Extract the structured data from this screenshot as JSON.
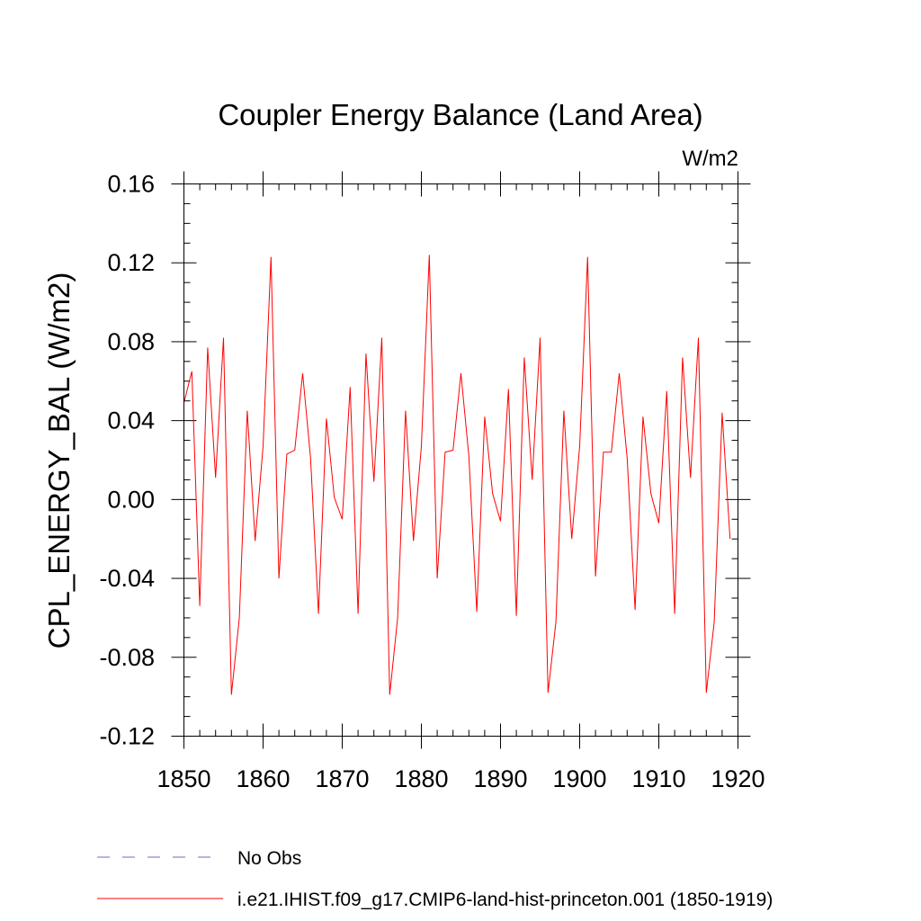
{
  "chart_data": {
    "type": "line",
    "title": "Coupler Energy Balance (Land Area)",
    "units_label": "W/m2",
    "ylabel": "CPL_ENERGY_BAL  (W/m2)",
    "xlabel": "",
    "xlim": [
      1850,
      1920
    ],
    "ylim": [
      -0.12,
      0.16
    ],
    "x_ticks": [
      1850,
      1860,
      1870,
      1880,
      1890,
      1900,
      1910,
      1920
    ],
    "y_ticks": [
      -0.12,
      -0.08,
      -0.04,
      0.0,
      0.04,
      0.08,
      0.12,
      0.16
    ],
    "y_tick_labels": [
      "-0.12",
      "-0.08",
      "-0.04",
      "0.00",
      "0.04",
      "0.08",
      "0.12",
      "0.16"
    ],
    "grid": false,
    "legend_position": "bottom",
    "series": [
      {
        "name": "i.e21.IHIST.f09_g17.CMIP6-land-hist-princeton.001 (1850-1919)",
        "color": "#ff0000",
        "style": "solid",
        "x": [
          1850,
          1851,
          1852,
          1853,
          1854,
          1855,
          1856,
          1857,
          1858,
          1859,
          1860,
          1861,
          1862,
          1863,
          1864,
          1865,
          1866,
          1867,
          1868,
          1869,
          1870,
          1871,
          1872,
          1873,
          1874,
          1875,
          1876,
          1877,
          1878,
          1879,
          1880,
          1881,
          1882,
          1883,
          1884,
          1885,
          1886,
          1887,
          1888,
          1889,
          1890,
          1891,
          1892,
          1893,
          1894,
          1895,
          1896,
          1897,
          1898,
          1899,
          1900,
          1901,
          1902,
          1903,
          1904,
          1905,
          1906,
          1907,
          1908,
          1909,
          1910,
          1911,
          1912,
          1913,
          1914,
          1915,
          1916,
          1917,
          1918,
          1919
        ],
        "values": [
          0.049,
          0.065,
          -0.054,
          0.077,
          0.011,
          0.082,
          -0.099,
          -0.06,
          0.045,
          -0.021,
          0.027,
          0.123,
          -0.04,
          0.023,
          0.025,
          0.064,
          0.021,
          -0.058,
          0.041,
          0.001,
          -0.01,
          0.057,
          -0.058,
          0.074,
          0.009,
          0.082,
          -0.099,
          -0.06,
          0.045,
          -0.021,
          0.027,
          0.124,
          -0.04,
          0.024,
          0.025,
          0.064,
          0.022,
          -0.057,
          0.042,
          0.003,
          -0.011,
          0.056,
          -0.059,
          0.072,
          0.01,
          0.082,
          -0.098,
          -0.062,
          0.045,
          -0.02,
          0.027,
          0.123,
          -0.039,
          0.024,
          0.024,
          0.064,
          0.021,
          -0.056,
          0.042,
          0.003,
          -0.012,
          0.055,
          -0.058,
          0.072,
          0.011,
          0.082,
          -0.098,
          -0.062,
          0.044,
          -0.02
        ]
      },
      {
        "name": "No Obs",
        "color": "#6b6bc4",
        "style": "dashed",
        "x": [],
        "values": []
      }
    ]
  }
}
